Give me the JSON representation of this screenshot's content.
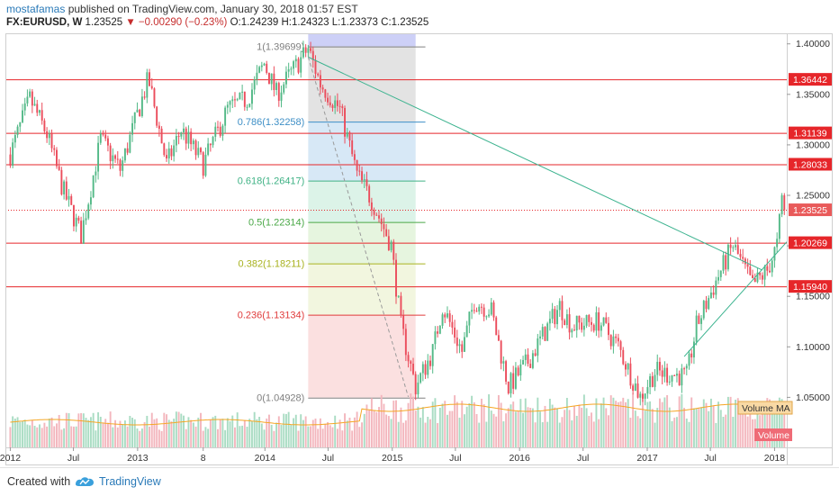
{
  "header": {
    "author": "mostafamas",
    "published_text": "published on TradingView.com, January 30, 2018 01:57 EST",
    "symbol": "FX:EURUSD, W",
    "last": "1.23525",
    "change": "▼ −0.00290 (−0.23%)",
    "open": "O:1.24239",
    "high": "H:1.24323",
    "low": "L:1.23373",
    "close": "C:1.23525"
  },
  "footer": {
    "created_with": "Created with",
    "brand": "TradingView"
  },
  "colors": {
    "up": "#53b987",
    "down": "#eb4d5c",
    "level_line": "#e6262a",
    "trend_line": "#3cb38f",
    "volume_ma": "#f5a623",
    "volume_up": "#a9dcc3",
    "volume_down": "#f3b6bd"
  },
  "chart_data": {
    "type": "candlestick",
    "instrument": "FX:EURUSD",
    "timeframe": "W",
    "y_range": [
      1.0,
      1.41
    ],
    "x_range": [
      "2011-12-19",
      "2018-02-05"
    ],
    "y_ticks": [
      "1.40000",
      "1.35000",
      "1.30000",
      "1.25000",
      "1.20000",
      "1.15000",
      "1.10000",
      "1.05000"
    ],
    "y_tick_values": [
      1.4,
      1.35,
      1.3,
      1.25,
      1.2,
      1.15,
      1.1,
      1.05
    ],
    "x_ticks": [
      {
        "label": "2012",
        "date": "2012-01-02"
      },
      {
        "label": "Jul",
        "date": "2012-07-01"
      },
      {
        "label": "2013",
        "date": "2013-01-01"
      },
      {
        "label": "8",
        "date": "2013-07-08"
      },
      {
        "label": "2014",
        "date": "2014-01-01"
      },
      {
        "label": "Jul",
        "date": "2014-07-01"
      },
      {
        "label": "2015",
        "date": "2015-01-01"
      },
      {
        "label": "Jul",
        "date": "2015-07-01"
      },
      {
        "label": "2016",
        "date": "2016-01-01"
      },
      {
        "label": "Jul",
        "date": "2016-07-01"
      },
      {
        "label": "2017",
        "date": "2017-01-01"
      },
      {
        "label": "Jul",
        "date": "2017-07-01"
      },
      {
        "label": "2018",
        "date": "2018-01-01"
      }
    ],
    "price_keypoints": [
      [
        "2012-01-02",
        1.29
      ],
      [
        "2012-02-27",
        1.345
      ],
      [
        "2012-04-16",
        1.31
      ],
      [
        "2012-06-01",
        1.255
      ],
      [
        "2012-07-23",
        1.21
      ],
      [
        "2012-09-17",
        1.305
      ],
      [
        "2012-11-12",
        1.275
      ],
      [
        "2013-02-01",
        1.365
      ],
      [
        "2013-03-25",
        1.28
      ],
      [
        "2013-05-06",
        1.315
      ],
      [
        "2013-07-08",
        1.28
      ],
      [
        "2013-09-16",
        1.335
      ],
      [
        "2013-11-11",
        1.345
      ],
      [
        "2013-12-30",
        1.38
      ],
      [
        "2014-02-03",
        1.35
      ],
      [
        "2014-05-05",
        1.395
      ],
      [
        "2014-06-09",
        1.36
      ],
      [
        "2014-08-04",
        1.335
      ],
      [
        "2014-09-22",
        1.27
      ],
      [
        "2014-11-03",
        1.245
      ],
      [
        "2014-12-29",
        1.2
      ],
      [
        "2015-01-26",
        1.12
      ],
      [
        "2015-03-09",
        1.06
      ],
      [
        "2015-04-27",
        1.095
      ],
      [
        "2015-05-25",
        1.14
      ],
      [
        "2015-07-20",
        1.095
      ],
      [
        "2015-08-24",
        1.145
      ],
      [
        "2015-10-12",
        1.135
      ],
      [
        "2015-11-30",
        1.06
      ],
      [
        "2016-01-25",
        1.085
      ],
      [
        "2016-04-25",
        1.14
      ],
      [
        "2016-05-30",
        1.12
      ],
      [
        "2016-08-15",
        1.125
      ],
      [
        "2016-10-10",
        1.1
      ],
      [
        "2016-12-12",
        1.05
      ],
      [
        "2017-01-23",
        1.075
      ],
      [
        "2017-04-24",
        1.07
      ],
      [
        "2017-05-22",
        1.12
      ],
      [
        "2017-07-24",
        1.17
      ],
      [
        "2017-09-04",
        1.2
      ],
      [
        "2017-10-30",
        1.16
      ],
      [
        "2017-12-11",
        1.175
      ],
      [
        "2018-01-08",
        1.2
      ],
      [
        "2018-01-22",
        1.245
      ],
      [
        "2018-01-29",
        1.23525
      ]
    ],
    "horizontal_levels": [
      {
        "label": "1.36442",
        "value": 1.36442
      },
      {
        "label": "1.31139",
        "value": 1.31139
      },
      {
        "label": "1.28033",
        "value": 1.28033
      },
      {
        "label": "1.20269",
        "value": 1.20269
      },
      {
        "label": "1.15940",
        "value": 1.1594
      }
    ],
    "current_price": {
      "label": "1.23525",
      "value": 1.23525
    },
    "fibonacci": {
      "start_date": "2014-05-05",
      "end_date": "2015-03-09",
      "levels": [
        {
          "label": "1(1.39699)",
          "value": 1.39699,
          "color": "#808080",
          "fill": "#e3e3e3"
        },
        {
          "label": "0.786(1.32258)",
          "value": 1.32258,
          "color": "#3e8fc6",
          "fill": "#d7e8f6"
        },
        {
          "label": "0.618(1.26417)",
          "value": 1.26417,
          "color": "#3fb285",
          "fill": "#dcf3e8"
        },
        {
          "label": "0.5(1.22314)",
          "value": 1.22314,
          "color": "#4aa847",
          "fill": "#e6f5df"
        },
        {
          "label": "0.382(1.18211)",
          "value": 1.18211,
          "color": "#a8b21e",
          "fill": "#f2f6df"
        },
        {
          "label": "0.236(1.13134)",
          "value": 1.13134,
          "color": "#e03b3b",
          "fill": "#fbe0e0"
        },
        {
          "label": "0(1.04928)",
          "value": 1.04928,
          "color": "#808080",
          "fill": "#fbe0e0"
        }
      ],
      "top_band": {
        "value": 1.41,
        "fill": "#cdd0f7"
      }
    },
    "trend_lines": [
      {
        "points": [
          [
            "2014-05-05",
            1.3865
          ],
          [
            "2017-11-27",
            1.1755
          ]
        ],
        "style": "solid"
      },
      {
        "points": [
          [
            "2017-04-17",
            1.09
          ],
          [
            "2018-02-05",
            1.2035
          ]
        ],
        "style": "solid"
      },
      {
        "points": [
          [
            "2014-05-05",
            1.3865
          ],
          [
            "2015-02-16",
            1.05
          ]
        ],
        "style": "dashed"
      }
    ],
    "indicators": [
      {
        "label": "Volume MA"
      },
      {
        "label": "Volume"
      }
    ]
  }
}
